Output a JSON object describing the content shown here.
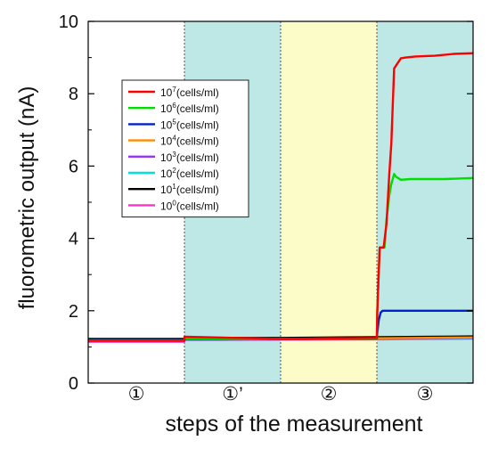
{
  "chart_data": {
    "type": "line",
    "xlabel": "steps of the measurement",
    "ylabel": "fluorometric output (nA)",
    "ylim": [
      0,
      10
    ],
    "y_ticks": [
      0,
      2,
      4,
      6,
      8,
      10
    ],
    "grid": false,
    "legend_position": "upper-left",
    "x_domain": [
      0,
      4
    ],
    "steps": [
      {
        "label": "①",
        "range": [
          0,
          1
        ],
        "color": "#ffffff"
      },
      {
        "label": "①’",
        "range": [
          1,
          2
        ],
        "color": "#bde8e6"
      },
      {
        "label": "②",
        "range": [
          2,
          3
        ],
        "color": "#fbfcc8"
      },
      {
        "label": "③",
        "range": [
          3,
          4
        ],
        "color": "#bde8e6"
      }
    ],
    "series": [
      {
        "name_base": "10",
        "name_exp": "7",
        "name_unit": "(cells/ml)",
        "color": "#ff0000",
        "x": [
          0,
          1,
          1.001,
          2,
          3,
          3.005,
          3.03,
          3.07,
          3.1,
          3.13,
          3.15,
          3.18,
          3.25,
          3.3,
          3.4,
          3.6,
          3.8,
          4
        ],
        "y": [
          1.17,
          1.17,
          1.28,
          1.22,
          1.25,
          2.0,
          3.75,
          3.75,
          4.4,
          5.8,
          6.6,
          8.7,
          8.98,
          9.0,
          9.03,
          9.05,
          9.1,
          9.12
        ]
      },
      {
        "name_base": "10",
        "name_exp": "6",
        "name_unit": "(cells/ml)",
        "color": "#00dd00",
        "x": [
          0,
          1,
          1.001,
          2,
          3,
          3.005,
          3.03,
          3.08,
          3.1,
          3.13,
          3.15,
          3.18,
          3.2,
          3.22,
          3.25,
          3.35,
          3.5,
          3.7,
          4
        ],
        "y": [
          1.18,
          1.18,
          1.24,
          1.22,
          1.24,
          2.0,
          3.75,
          3.75,
          4.5,
          5.2,
          5.5,
          5.78,
          5.7,
          5.67,
          5.62,
          5.64,
          5.64,
          5.64,
          5.67
        ]
      },
      {
        "name_base": "10",
        "name_exp": "5",
        "name_unit": "(cells/ml)",
        "color": "#0022cc",
        "x": [
          0,
          1,
          1.001,
          2,
          3,
          3.005,
          3.02,
          3.04,
          3.06,
          3.5,
          4
        ],
        "y": [
          1.19,
          1.19,
          1.23,
          1.22,
          1.23,
          1.4,
          1.75,
          1.95,
          2.0,
          2.0,
          2.0
        ]
      },
      {
        "name_base": "10",
        "name_exp": "4",
        "name_unit": "(cells/ml)",
        "color": "#ff8c00",
        "x": [
          0,
          1,
          1.001,
          2,
          3,
          4
        ],
        "y": [
          1.18,
          1.18,
          1.22,
          1.22,
          1.24,
          1.26
        ]
      },
      {
        "name_base": "10",
        "name_exp": "3",
        "name_unit": "(cells/ml)",
        "color": "#9933ff",
        "x": [
          0,
          1,
          1.001,
          2,
          3,
          4
        ],
        "y": [
          1.17,
          1.17,
          1.21,
          1.21,
          1.23,
          1.25
        ]
      },
      {
        "name_base": "10",
        "name_exp": "2",
        "name_unit": "(cells/ml)",
        "color": "#00e0e0",
        "x": [
          0,
          1,
          1.001,
          2,
          3,
          4
        ],
        "y": [
          1.16,
          1.16,
          1.2,
          1.21,
          1.22,
          1.24
        ]
      },
      {
        "name_base": "10",
        "name_exp": "1",
        "name_unit": "(cells/ml)",
        "color": "#000000",
        "x": [
          0,
          1,
          1.001,
          2,
          3,
          4
        ],
        "y": [
          1.22,
          1.22,
          1.25,
          1.25,
          1.27,
          1.29
        ]
      },
      {
        "name_base": "10",
        "name_exp": "0",
        "name_unit": "(cells/ml)",
        "color": "#ff33cc",
        "x": [
          0,
          1,
          1.001,
          2,
          3,
          4
        ],
        "y": [
          1.14,
          1.14,
          1.19,
          1.2,
          1.21,
          1.23
        ]
      }
    ]
  }
}
